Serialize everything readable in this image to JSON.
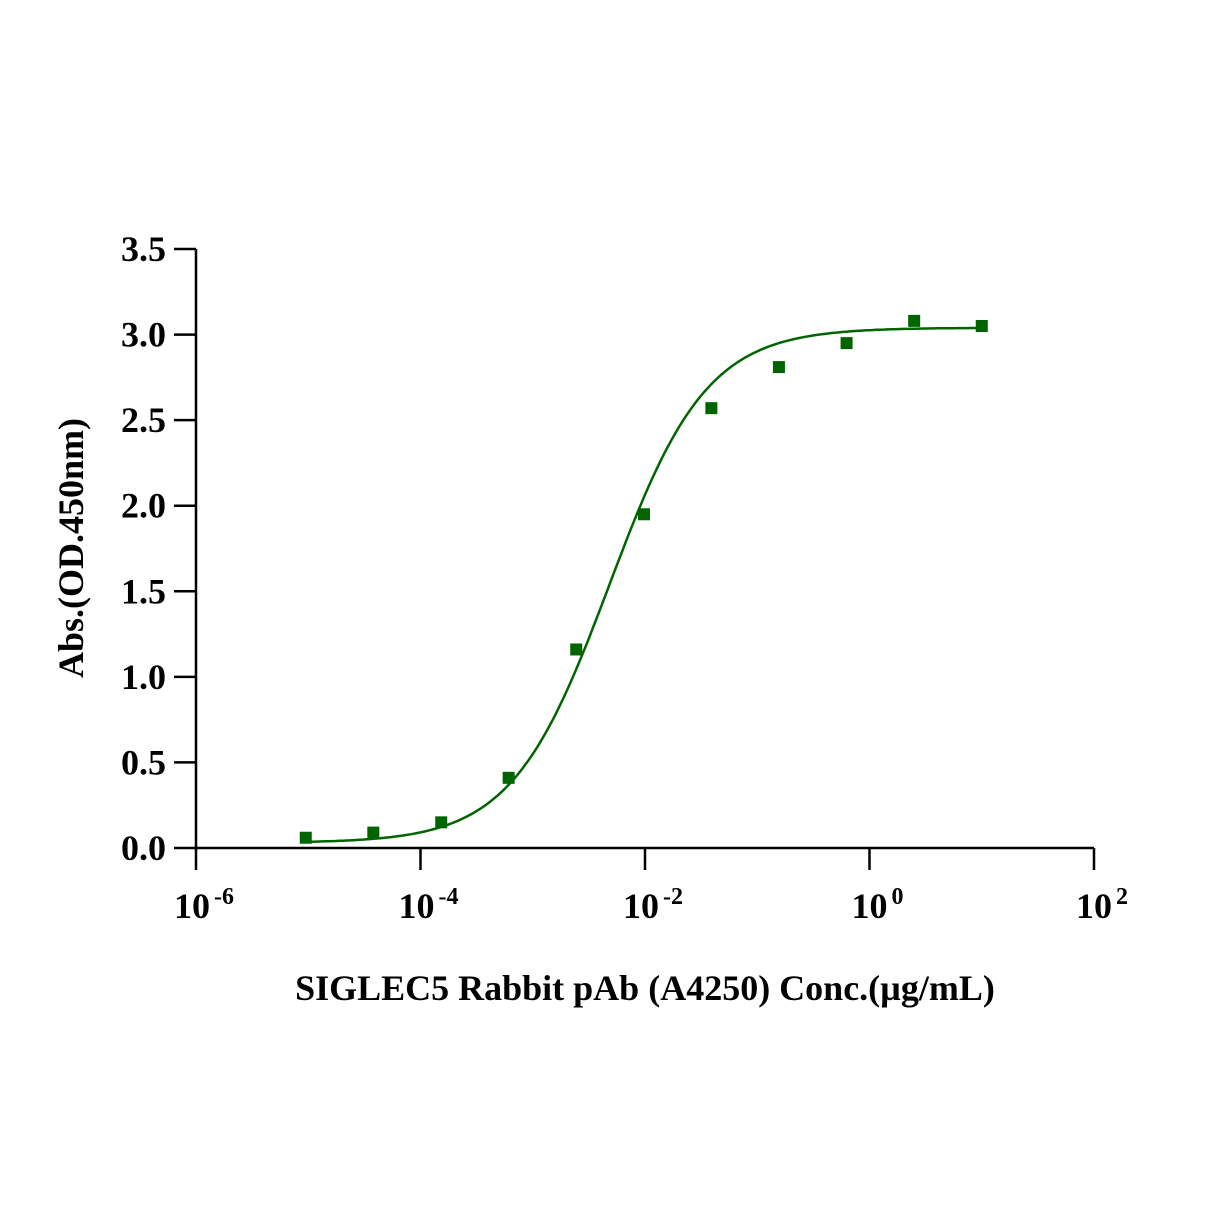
{
  "chart_data": {
    "type": "scatter",
    "title": "",
    "xlabel": "SIGLEC5 Rabbit pAb (A4250) Conc.(µg/mL)",
    "ylabel": "Abs.(OD.450nm)",
    "xscale": "log",
    "xlim": [
      1e-06,
      100
    ],
    "ylim": [
      0,
      3.5
    ],
    "x_ticks": [
      {
        "base": "10",
        "exp": "-6"
      },
      {
        "base": "10",
        "exp": "-4"
      },
      {
        "base": "10",
        "exp": "-2"
      },
      {
        "base": "10",
        "exp": "0"
      },
      {
        "base": "10",
        "exp": "2"
      }
    ],
    "y_ticks": [
      "0.0",
      "0.5",
      "1.0",
      "1.5",
      "2.0",
      "2.5",
      "3.0",
      "3.5"
    ],
    "grid": false,
    "color": "#006400",
    "marker": "square",
    "x": [
      9.5e-06,
      3.8e-05,
      0.000153,
      0.00061,
      0.00244,
      0.0098,
      0.039,
      0.156,
      0.625,
      2.5,
      10
    ],
    "y": [
      0.06,
      0.09,
      0.15,
      0.41,
      1.16,
      1.95,
      2.57,
      2.81,
      2.95,
      3.08,
      3.05
    ],
    "fit": {
      "model": "4PL",
      "bottom": 0.03,
      "top": 3.04,
      "ec50": 0.0048,
      "hill": 1.0
    }
  }
}
